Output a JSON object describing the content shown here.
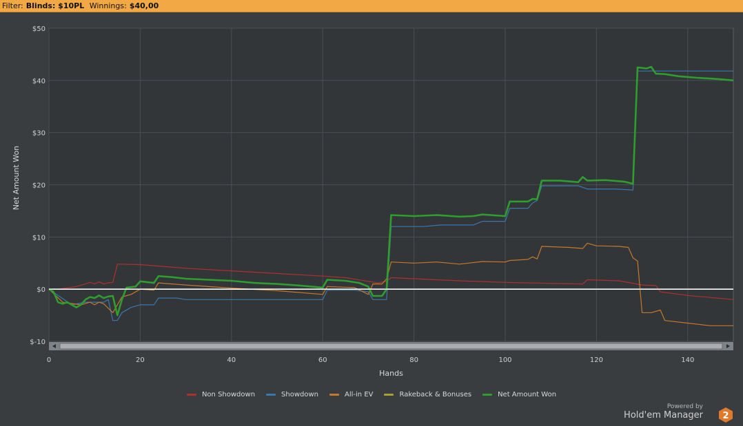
{
  "filter": {
    "label": "Filter:",
    "blinds_label": "Blinds: $10PL",
    "winnings_label": "Winnings:",
    "winnings_value": "$40,00"
  },
  "chart_data": {
    "type": "line",
    "xlabel": "Hands",
    "ylabel": "Net Amount Won",
    "xlim": [
      0,
      150
    ],
    "ylim": [
      -10,
      50
    ],
    "x_ticks": [
      0,
      20,
      40,
      60,
      80,
      100,
      120,
      140
    ],
    "y_ticks": [
      -10,
      0,
      10,
      20,
      30,
      40,
      50
    ],
    "y_tick_labels": [
      "$-10",
      "$0",
      "$10",
      "$20",
      "$30",
      "$40",
      "$50"
    ],
    "grid": true,
    "legend_position": "bottom",
    "series": [
      {
        "name": "Non Showdown",
        "color": "#b03030",
        "points": [
          [
            0,
            0
          ],
          [
            2,
            0
          ],
          [
            6,
            0.5
          ],
          [
            8,
            1
          ],
          [
            9,
            1.3
          ],
          [
            10,
            1
          ],
          [
            11,
            1.4
          ],
          [
            12,
            1
          ],
          [
            13,
            1.2
          ],
          [
            14,
            1.3
          ],
          [
            15,
            4.8
          ],
          [
            20,
            4.7
          ],
          [
            30,
            4
          ],
          [
            40,
            3.5
          ],
          [
            50,
            3
          ],
          [
            60,
            2.5
          ],
          [
            65,
            2.2
          ],
          [
            70,
            1.5
          ],
          [
            72,
            1.2
          ],
          [
            74,
            1.5
          ],
          [
            75,
            2.2
          ],
          [
            80,
            2
          ],
          [
            90,
            1.6
          ],
          [
            100,
            1.3
          ],
          [
            110,
            1.1
          ],
          [
            117,
            1
          ],
          [
            118,
            1.8
          ],
          [
            125,
            1.6
          ],
          [
            130,
            0.8
          ],
          [
            133,
            0.7
          ],
          [
            134,
            -0.5
          ],
          [
            140,
            -1.2
          ],
          [
            150,
            -2
          ]
        ]
      },
      {
        "name": "Showdown",
        "color": "#3a78b0",
        "points": [
          [
            0,
            0
          ],
          [
            5,
            -3
          ],
          [
            8,
            -2.5
          ],
          [
            12,
            -2.5
          ],
          [
            13,
            -2
          ],
          [
            14,
            -6
          ],
          [
            15,
            -6
          ],
          [
            16,
            -4.5
          ],
          [
            18,
            -3.5
          ],
          [
            20,
            -3
          ],
          [
            23,
            -3
          ],
          [
            24,
            -1.7
          ],
          [
            28,
            -1.7
          ],
          [
            30,
            -2
          ],
          [
            40,
            -2
          ],
          [
            50,
            -2
          ],
          [
            60,
            -2
          ],
          [
            61,
            -0.2
          ],
          [
            67,
            -0.2
          ],
          [
            70,
            -0.5
          ],
          [
            71,
            -2
          ],
          [
            74,
            -2
          ],
          [
            75,
            12
          ],
          [
            82,
            12
          ],
          [
            86,
            12.3
          ],
          [
            93,
            12.3
          ],
          [
            95,
            13
          ],
          [
            100,
            13
          ],
          [
            101,
            15.5
          ],
          [
            105,
            15.5
          ],
          [
            106,
            16.5
          ],
          [
            107,
            17
          ],
          [
            108,
            19.8
          ],
          [
            116,
            19.8
          ],
          [
            118,
            19.2
          ],
          [
            124,
            19.2
          ],
          [
            128,
            19
          ],
          [
            129,
            41.8
          ],
          [
            150,
            41.8
          ]
        ]
      },
      {
        "name": "All-in EV",
        "color": "#c8782a",
        "points": [
          [
            0,
            0
          ],
          [
            3,
            -2.5
          ],
          [
            7,
            -3
          ],
          [
            9,
            -2.5
          ],
          [
            10,
            -3
          ],
          [
            11,
            -2.5
          ],
          [
            12,
            -2.8
          ],
          [
            14,
            -4.5
          ],
          [
            16,
            -1.5
          ],
          [
            18,
            -1
          ],
          [
            20,
            0
          ],
          [
            23,
            -0.2
          ],
          [
            24,
            1.2
          ],
          [
            30,
            0.8
          ],
          [
            40,
            0.2
          ],
          [
            50,
            -0.3
          ],
          [
            60,
            -1
          ],
          [
            61,
            0.5
          ],
          [
            67,
            0.3
          ],
          [
            70,
            -1
          ],
          [
            71,
            1
          ],
          [
            73,
            1
          ],
          [
            74,
            2
          ],
          [
            75,
            5.2
          ],
          [
            80,
            5
          ],
          [
            85,
            5.2
          ],
          [
            90,
            4.8
          ],
          [
            95,
            5.3
          ],
          [
            100,
            5.2
          ],
          [
            101,
            5.5
          ],
          [
            105,
            5.7
          ],
          [
            106,
            6.2
          ],
          [
            107,
            5.8
          ],
          [
            108,
            8.2
          ],
          [
            114,
            8
          ],
          [
            117,
            7.8
          ],
          [
            118,
            8.8
          ],
          [
            120,
            8.3
          ],
          [
            125,
            8.2
          ],
          [
            127,
            8
          ],
          [
            128,
            6
          ],
          [
            129,
            5.4
          ],
          [
            130,
            -4.5
          ],
          [
            132,
            -4.5
          ],
          [
            134,
            -4
          ],
          [
            135,
            -6
          ],
          [
            140,
            -6.5
          ],
          [
            145,
            -7
          ],
          [
            150,
            -7
          ]
        ]
      },
      {
        "name": "Rakeback & Bonuses",
        "color": "#a8a030",
        "points": [
          [
            0,
            0
          ],
          [
            150,
            0
          ]
        ]
      },
      {
        "name": "Net Amount Won",
        "color": "#2e9e2e",
        "points": [
          [
            0,
            0
          ],
          [
            1,
            -0.5
          ],
          [
            2,
            -2.5
          ],
          [
            3,
            -2.8
          ],
          [
            4,
            -2.5
          ],
          [
            5,
            -3
          ],
          [
            6,
            -3.5
          ],
          [
            7,
            -3
          ],
          [
            8,
            -2
          ],
          [
            9,
            -1.5
          ],
          [
            10,
            -1.7
          ],
          [
            11,
            -1.2
          ],
          [
            12,
            -1.7
          ],
          [
            13,
            -1.4
          ],
          [
            14,
            -1.3
          ],
          [
            15,
            -5
          ],
          [
            16,
            -2
          ],
          [
            17,
            0.3
          ],
          [
            19,
            0.5
          ],
          [
            20,
            1.5
          ],
          [
            22,
            1.3
          ],
          [
            23,
            1.2
          ],
          [
            24,
            2.5
          ],
          [
            27,
            2.3
          ],
          [
            30,
            2
          ],
          [
            35,
            1.8
          ],
          [
            40,
            1.6
          ],
          [
            45,
            1.2
          ],
          [
            50,
            1
          ],
          [
            55,
            0.7
          ],
          [
            60,
            0.3
          ],
          [
            61,
            1.8
          ],
          [
            65,
            1.6
          ],
          [
            68,
            1.2
          ],
          [
            70,
            0.5
          ],
          [
            71,
            -1.3
          ],
          [
            73,
            -1.3
          ],
          [
            74,
            0
          ],
          [
            75,
            14.2
          ],
          [
            80,
            14
          ],
          [
            85,
            14.2
          ],
          [
            90,
            13.9
          ],
          [
            93,
            14
          ],
          [
            95,
            14.3
          ],
          [
            100,
            14
          ],
          [
            101,
            16.8
          ],
          [
            105,
            16.8
          ],
          [
            106,
            17.3
          ],
          [
            107,
            17.2
          ],
          [
            108,
            20.8
          ],
          [
            112,
            20.8
          ],
          [
            116,
            20.5
          ],
          [
            117,
            21.5
          ],
          [
            118,
            20.8
          ],
          [
            122,
            20.9
          ],
          [
            126,
            20.6
          ],
          [
            128,
            20.2
          ],
          [
            129,
            42.5
          ],
          [
            131,
            42.3
          ],
          [
            132,
            42.6
          ],
          [
            133,
            41.3
          ],
          [
            135,
            41.2
          ],
          [
            138,
            40.8
          ],
          [
            142,
            40.5
          ],
          [
            146,
            40.3
          ],
          [
            150,
            40
          ]
        ]
      }
    ]
  },
  "brand": {
    "powered_by": "Powered by",
    "product": "Hold'em Manager",
    "version_badge": "2",
    "badge_color": "#e07a2a"
  }
}
